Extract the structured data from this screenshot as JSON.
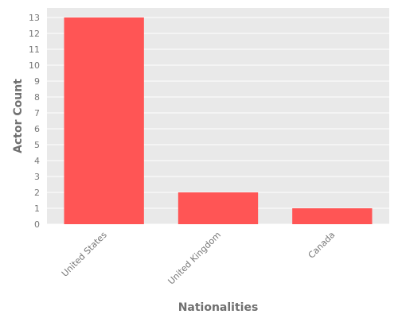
{
  "chart_data": {
    "type": "bar",
    "title": "",
    "xlabel": "Nationalities",
    "ylabel": "Actor Count",
    "categories": [
      "United States",
      "United Kingdom",
      "Canada"
    ],
    "values": [
      13,
      2,
      1
    ],
    "ylim": [
      0,
      13.6
    ],
    "yticks": [
      0,
      1,
      2,
      3,
      4,
      5,
      6,
      7,
      8,
      9,
      10,
      11,
      12,
      13
    ],
    "grid": true,
    "legend": "none",
    "colors": {
      "bar": "#ff5555",
      "plot_background": "#e9e9e9",
      "grid": "#ffffff"
    }
  }
}
